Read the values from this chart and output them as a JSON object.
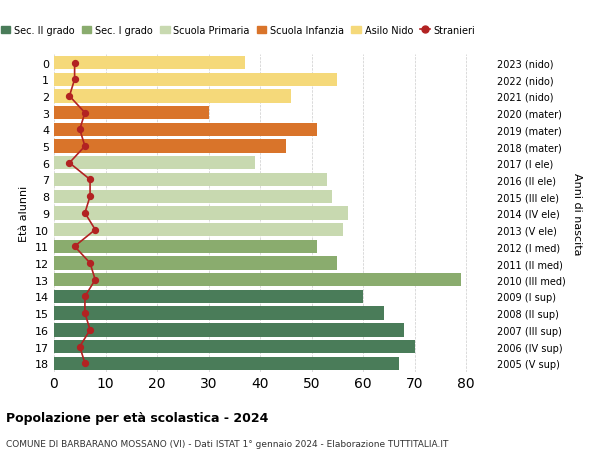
{
  "ages": [
    18,
    17,
    16,
    15,
    14,
    13,
    12,
    11,
    10,
    9,
    8,
    7,
    6,
    5,
    4,
    3,
    2,
    1,
    0
  ],
  "years": [
    "2005 (V sup)",
    "2006 (IV sup)",
    "2007 (III sup)",
    "2008 (II sup)",
    "2009 (I sup)",
    "2010 (III med)",
    "2011 (II med)",
    "2012 (I med)",
    "2013 (V ele)",
    "2014 (IV ele)",
    "2015 (III ele)",
    "2016 (II ele)",
    "2017 (I ele)",
    "2018 (mater)",
    "2019 (mater)",
    "2020 (mater)",
    "2021 (nido)",
    "2022 (nido)",
    "2023 (nido)"
  ],
  "bar_values": [
    67,
    70,
    68,
    64,
    60,
    79,
    55,
    51,
    56,
    57,
    54,
    53,
    39,
    45,
    51,
    30,
    46,
    55,
    37
  ],
  "stranieri_values": [
    6,
    5,
    7,
    6,
    6,
    8,
    7,
    4,
    8,
    6,
    7,
    7,
    3,
    6,
    5,
    6,
    3,
    4,
    4
  ],
  "bar_colors": [
    "#4a7c59",
    "#4a7c59",
    "#4a7c59",
    "#4a7c59",
    "#4a7c59",
    "#8aac6e",
    "#8aac6e",
    "#8aac6e",
    "#c8d9b0",
    "#c8d9b0",
    "#c8d9b0",
    "#c8d9b0",
    "#c8d9b0",
    "#d9742a",
    "#d9742a",
    "#d9742a",
    "#f5d97a",
    "#f5d97a",
    "#f5d97a"
  ],
  "legend_labels": [
    "Sec. II grado",
    "Sec. I grado",
    "Scuola Primaria",
    "Scuola Infanzia",
    "Asilo Nido",
    "Stranieri"
  ],
  "legend_colors": [
    "#4a7c59",
    "#8aac6e",
    "#c8d9b0",
    "#d9742a",
    "#f5d97a",
    "#b22222"
  ],
  "ylabel_left": "Età alunni",
  "ylabel_right": "Anni di nascita",
  "title": "Popolazione per età scolastica - 2024",
  "subtitle": "COMUNE DI BARBARANO MOSSANO (VI) - Dati ISTAT 1° gennaio 2024 - Elaborazione TUTTITALIA.IT",
  "xlim": [
    0,
    85
  ],
  "xticks": [
    0,
    10,
    20,
    30,
    40,
    50,
    60,
    70,
    80
  ],
  "stranieri_color": "#b22222",
  "background_color": "#ffffff",
  "grid_color": "#cccccc"
}
